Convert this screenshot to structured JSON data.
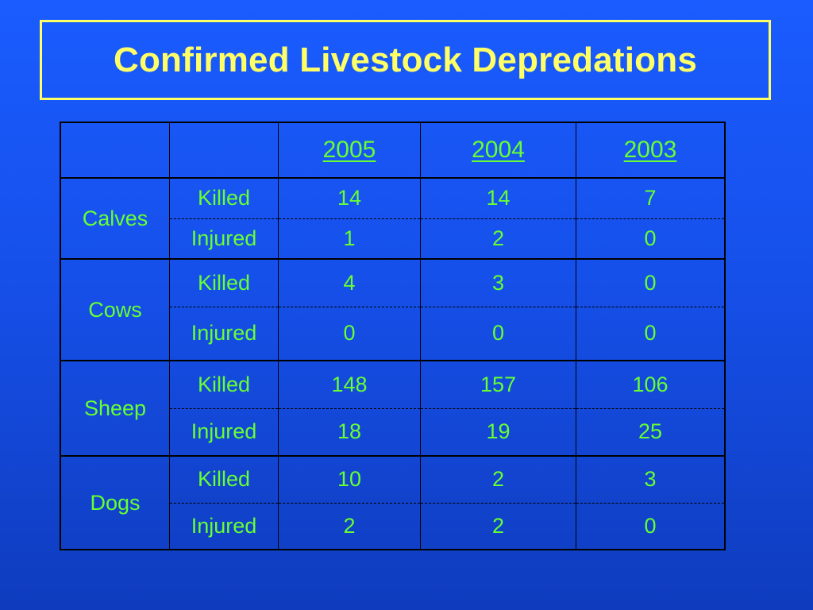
{
  "slide": {
    "title": "Confirmed Livestock Depredations"
  },
  "table": {
    "years": [
      "2005",
      "2004",
      "2003"
    ],
    "groups": [
      {
        "species": "Calves",
        "rows": [
          {
            "type": "Killed",
            "values": [
              "14",
              "14",
              "7"
            ]
          },
          {
            "type": "Injured",
            "values": [
              "1",
              "2",
              "0"
            ]
          }
        ]
      },
      {
        "species": "Cows",
        "rows": [
          {
            "type": "Killed",
            "values": [
              "4",
              "3",
              "0"
            ]
          },
          {
            "type": "Injured",
            "values": [
              "0",
              "0",
              "0"
            ]
          }
        ]
      },
      {
        "species": "Sheep",
        "rows": [
          {
            "type": "Killed",
            "values": [
              "148",
              "157",
              "106"
            ]
          },
          {
            "type": "Injured",
            "values": [
              "18",
              "19",
              "25"
            ]
          }
        ]
      },
      {
        "species": "Dogs",
        "rows": [
          {
            "type": "Killed",
            "values": [
              "10",
              "2",
              "3"
            ]
          },
          {
            "type": "Injured",
            "values": [
              "2",
              "2",
              "0"
            ]
          }
        ]
      }
    ]
  },
  "colors": {
    "background": "#1650ea",
    "title_text": "#ffff66",
    "title_border": "#ffff66",
    "table_text": "#66ff33",
    "table_lines": "#000000"
  }
}
